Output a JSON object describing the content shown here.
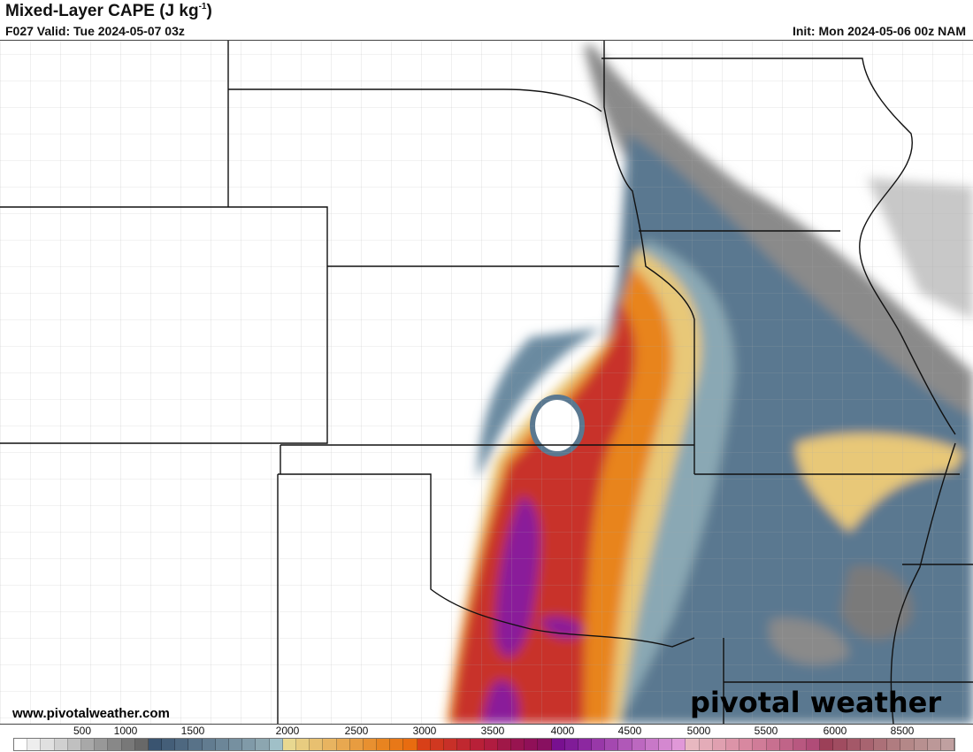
{
  "header": {
    "title": "Mixed-Layer CAPE (J kg",
    "title_sup": "-1",
    "title_end": ")",
    "valid": "F027 Valid: Tue 2024-05-07 03z",
    "init": "Init: Mon 2024-05-06 00z NAM"
  },
  "footer": {
    "website": "www.pivotalweather.com",
    "logo": "pivotal weather"
  },
  "colorbar": {
    "labels": [
      "500",
      "1000",
      "1500",
      "2000",
      "2500",
      "3000",
      "3500",
      "4000",
      "4500",
      "5000",
      "5500",
      "6000",
      "8500"
    ],
    "colors": [
      "#ffffff",
      "#eeeeee",
      "#e0e0e0",
      "#d0d0d0",
      "#c0c0c0",
      "#a8a8a8",
      "#989898",
      "#888888",
      "#787878",
      "#686868",
      "#3a5470",
      "#445e78",
      "#4e6880",
      "#587288",
      "#627c90",
      "#6c8698",
      "#7690a0",
      "#809aa8",
      "#8ca6b0",
      "#a0c0c8",
      "#e8d890",
      "#e8cc80",
      "#e8c070",
      "#e8b460",
      "#e8a850",
      "#e89c40",
      "#e89030",
      "#e88420",
      "#e87818",
      "#e86c10",
      "#d84018",
      "#d03820",
      "#c83028",
      "#c02830",
      "#b82038",
      "#b01c40",
      "#a01848",
      "#981450",
      "#901058",
      "#881060",
      "#781090",
      "#801c98",
      "#8c28a0",
      "#9838a8",
      "#a448b0",
      "#b058b8",
      "#bc68c0",
      "#c878c8",
      "#d488d0",
      "#e098d8",
      "#e8b8c0",
      "#e4acb8",
      "#e0a0b0",
      "#dc94a8",
      "#d888a0",
      "#d07c98",
      "#c87090",
      "#c06488",
      "#b85880",
      "#b04c78",
      "#9c4058",
      "#a04c60",
      "#a45868",
      "#a86470",
      "#ac7078",
      "#b07c80",
      "#b48888",
      "#b89090",
      "#bc9898",
      "#c0a0a0"
    ]
  },
  "map_colors": {
    "border": "#111111",
    "county": "#999999",
    "gray_band": "#8a8a8a",
    "blue": "#5a7890",
    "blue_light": "#8aa8b4",
    "yellow": "#e8c878",
    "orange": "#e8841c",
    "red": "#c8302a",
    "purple": "#8a1a9a"
  }
}
